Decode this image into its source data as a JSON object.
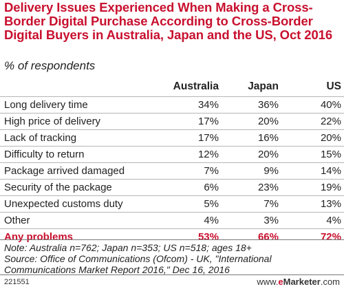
{
  "title": "Delivery Issues Experienced When Making a Cross-Border Digital Purchase According to Cross-Border Digital Buyers in Australia, Japan and the US, Oct 2016",
  "subtitle": "% of respondents",
  "columns": [
    "",
    "Australia",
    "Japan",
    "US"
  ],
  "rows": [
    {
      "label": "Long delivery time",
      "cells": [
        "34%",
        "36%",
        "40%"
      ]
    },
    {
      "label": "High price of delivery",
      "cells": [
        "17%",
        "20%",
        "22%"
      ]
    },
    {
      "label": "Lack of tracking",
      "cells": [
        "17%",
        "16%",
        "20%"
      ]
    },
    {
      "label": "Difficulty to return",
      "cells": [
        "12%",
        "20%",
        "15%"
      ]
    },
    {
      "label": "Package arrived damaged",
      "cells": [
        "7%",
        "9%",
        "14%"
      ]
    },
    {
      "label": "Security of the package",
      "cells": [
        "6%",
        "23%",
        "19%"
      ]
    },
    {
      "label": "Unexpected customs duty",
      "cells": [
        "5%",
        "7%",
        "13%"
      ]
    },
    {
      "label": "Other",
      "cells": [
        "4%",
        "3%",
        "4%"
      ]
    }
  ],
  "total": {
    "label": "Any problems",
    "cells": [
      "53%",
      "66%",
      "72%"
    ]
  },
  "notes": [
    "Note: Australia n=762; Japan n=353; US n=518; ages 18+",
    "Source: Office of Communications (Ofcom) - UK, \"International Communications Market Report 2016,\" Dec 16, 2016"
  ],
  "code": "221551",
  "logo": {
    "prefix": "www.",
    "brand_e": "e",
    "brand_rest": "Marketer",
    "suffix": ".com"
  },
  "colors": {
    "accent": "#c8102e",
    "text": "#222222",
    "rule": "#b5b5b5"
  },
  "chart_data": {
    "type": "table",
    "title": "Delivery Issues Experienced When Making a Cross-Border Digital Purchase According to Cross-Border Digital Buyers in Australia, Japan and the US, Oct 2016",
    "subtitle": "% of respondents",
    "categories": [
      "Long delivery time",
      "High price of delivery",
      "Lack of tracking",
      "Difficulty to return",
      "Package arrived damaged",
      "Security of the package",
      "Unexpected customs duty",
      "Other",
      "Any problems"
    ],
    "series": [
      {
        "name": "Australia",
        "values": [
          34,
          17,
          17,
          12,
          7,
          6,
          5,
          4,
          53
        ]
      },
      {
        "name": "Japan",
        "values": [
          36,
          20,
          16,
          20,
          9,
          23,
          7,
          3,
          66
        ]
      },
      {
        "name": "US",
        "values": [
          40,
          22,
          20,
          15,
          14,
          19,
          13,
          4,
          72
        ]
      }
    ]
  }
}
